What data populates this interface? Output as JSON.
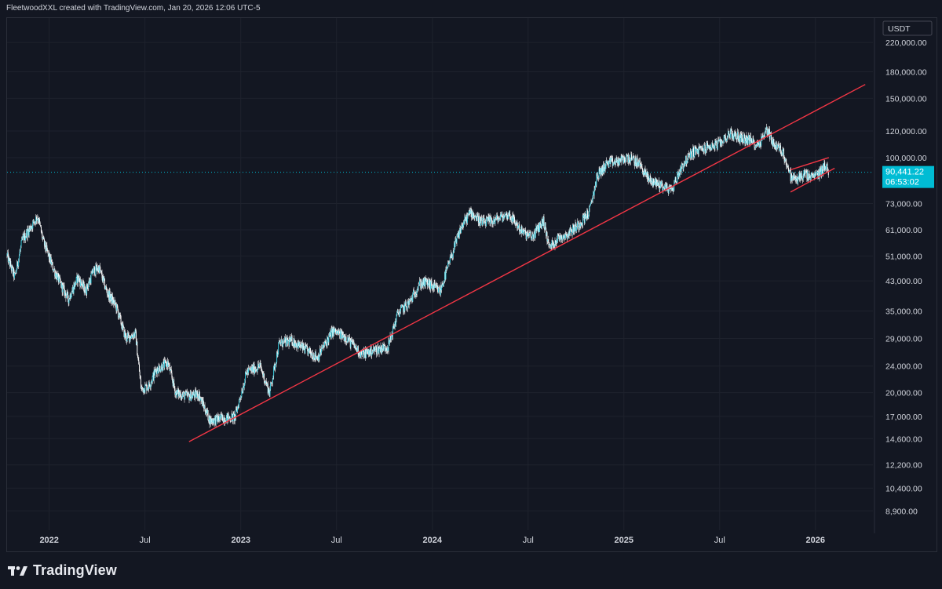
{
  "header": {
    "attribution": "FleetwoodXXL created with TradingView.com, Jan 20, 2026 12:06 UTC-5"
  },
  "footer": {
    "brand": "TradingView",
    "logo_icon": "tradingview-logo-icon"
  },
  "colors": {
    "background": "#131722",
    "grid": "#1e222d",
    "candle": "#26c6da",
    "wick": "#ffffff",
    "trendline": "#f23645",
    "price_badge": "#00bcd4",
    "text": "#d1d4dc"
  },
  "chart_data": {
    "type": "candlestick",
    "scale": "log",
    "currency_label": "USDT",
    "ylim": [
      7800,
      260000
    ],
    "y_ticks": [
      {
        "value": 220000,
        "label": "220,000.00"
      },
      {
        "value": 180000,
        "label": "180,000.00"
      },
      {
        "value": 150000,
        "label": "150,000.00"
      },
      {
        "value": 120000,
        "label": "120,000.00"
      },
      {
        "value": 100000,
        "label": "100,000.00"
      },
      {
        "value": 73000,
        "label": "73,000.00"
      },
      {
        "value": 61000,
        "label": "61,000.00"
      },
      {
        "value": 51000,
        "label": "51,000.00"
      },
      {
        "value": 43000,
        "label": "43,000.00"
      },
      {
        "value": 35000,
        "label": "35,000.00"
      },
      {
        "value": 29000,
        "label": "29,000.00"
      },
      {
        "value": 24000,
        "label": "24,000.00"
      },
      {
        "value": 20000,
        "label": "20,000.00"
      },
      {
        "value": 17000,
        "label": "17,000.00"
      },
      {
        "value": 14600,
        "label": "14,600.00"
      },
      {
        "value": 12200,
        "label": "12,200.00"
      },
      {
        "value": 10400,
        "label": "10,400.00"
      },
      {
        "value": 8900,
        "label": "8,900.00"
      }
    ],
    "x_range": [
      2021.78,
      2026.3
    ],
    "x_ticks": [
      {
        "t": 2022.0,
        "label": "2022",
        "major": true
      },
      {
        "t": 2022.5,
        "label": "Jul",
        "major": false
      },
      {
        "t": 2023.0,
        "label": "2023",
        "major": true
      },
      {
        "t": 2023.5,
        "label": "Jul",
        "major": false
      },
      {
        "t": 2024.0,
        "label": "2024",
        "major": true
      },
      {
        "t": 2024.5,
        "label": "Jul",
        "major": false
      },
      {
        "t": 2025.0,
        "label": "2025",
        "major": true
      },
      {
        "t": 2025.5,
        "label": "Jul",
        "major": false
      },
      {
        "t": 2026.0,
        "label": "2026",
        "major": true
      }
    ],
    "last_price": {
      "value": 90441.22,
      "label": "90,441.22",
      "countdown": "06:53:02"
    },
    "trendlines": [
      {
        "name": "long-term-support-line",
        "points": [
          [
            2022.73,
            14300
          ],
          [
            2026.26,
            165000
          ]
        ]
      },
      {
        "name": "wedge-upper-line",
        "points": [
          [
            2025.87,
            92000
          ],
          [
            2026.07,
            100000
          ]
        ]
      },
      {
        "name": "wedge-lower-line",
        "points": [
          [
            2025.87,
            79000
          ],
          [
            2026.1,
            93000
          ]
        ]
      }
    ],
    "price_path": [
      [
        2021.78,
        51000
      ],
      [
        2021.82,
        44000
      ],
      [
        2021.86,
        57000
      ],
      [
        2021.91,
        63000
      ],
      [
        2021.94,
        67000
      ],
      [
        2021.97,
        56000
      ],
      [
        2022.02,
        47000
      ],
      [
        2022.06,
        42000
      ],
      [
        2022.1,
        38000
      ],
      [
        2022.15,
        44000
      ],
      [
        2022.19,
        40000
      ],
      [
        2022.23,
        46000
      ],
      [
        2022.26,
        47000
      ],
      [
        2022.3,
        40000
      ],
      [
        2022.35,
        36000
      ],
      [
        2022.4,
        29000
      ],
      [
        2022.45,
        30000
      ],
      [
        2022.48,
        20500
      ],
      [
        2022.52,
        21000
      ],
      [
        2022.56,
        23500
      ],
      [
        2022.62,
        24500
      ],
      [
        2022.66,
        20000
      ],
      [
        2022.72,
        19500
      ],
      [
        2022.78,
        19800
      ],
      [
        2022.84,
        16500
      ],
      [
        2022.9,
        16800
      ],
      [
        2022.97,
        16900
      ],
      [
        2023.03,
        23000
      ],
      [
        2023.1,
        24000
      ],
      [
        2023.15,
        20000
      ],
      [
        2023.2,
        28000
      ],
      [
        2023.27,
        28500
      ],
      [
        2023.33,
        27000
      ],
      [
        2023.4,
        25500
      ],
      [
        2023.48,
        30500
      ],
      [
        2023.55,
        29200
      ],
      [
        2023.63,
        26000
      ],
      [
        2023.7,
        26800
      ],
      [
        2023.77,
        27500
      ],
      [
        2023.82,
        34500
      ],
      [
        2023.88,
        37000
      ],
      [
        2023.93,
        42000
      ],
      [
        2023.97,
        42500
      ],
      [
        2024.04,
        40000
      ],
      [
        2024.1,
        51000
      ],
      [
        2024.15,
        62000
      ],
      [
        2024.2,
        69000
      ],
      [
        2024.26,
        64000
      ],
      [
        2024.32,
        65000
      ],
      [
        2024.4,
        68000
      ],
      [
        2024.47,
        60000
      ],
      [
        2024.52,
        58000
      ],
      [
        2024.58,
        65000
      ],
      [
        2024.61,
        54000
      ],
      [
        2024.66,
        58000
      ],
      [
        2024.7,
        59000
      ],
      [
        2024.76,
        63000
      ],
      [
        2024.82,
        69000
      ],
      [
        2024.86,
        88000
      ],
      [
        2024.91,
        96000
      ],
      [
        2024.96,
        97000
      ],
      [
        2025.02,
        100000
      ],
      [
        2025.08,
        96000
      ],
      [
        2025.13,
        86000
      ],
      [
        2025.19,
        83000
      ],
      [
        2025.25,
        80000
      ],
      [
        2025.3,
        94000
      ],
      [
        2025.36,
        104000
      ],
      [
        2025.43,
        107000
      ],
      [
        2025.5,
        110000
      ],
      [
        2025.55,
        118000
      ],
      [
        2025.6,
        115000
      ],
      [
        2025.65,
        113000
      ],
      [
        2025.7,
        109000
      ],
      [
        2025.75,
        122000
      ],
      [
        2025.78,
        110000
      ],
      [
        2025.83,
        104000
      ],
      [
        2025.87,
        88000
      ],
      [
        2025.9,
        86000
      ],
      [
        2025.94,
        89000
      ],
      [
        2025.98,
        87000
      ],
      [
        2026.02,
        90000
      ],
      [
        2026.05,
        95000
      ],
      [
        2026.07,
        90441
      ]
    ]
  }
}
